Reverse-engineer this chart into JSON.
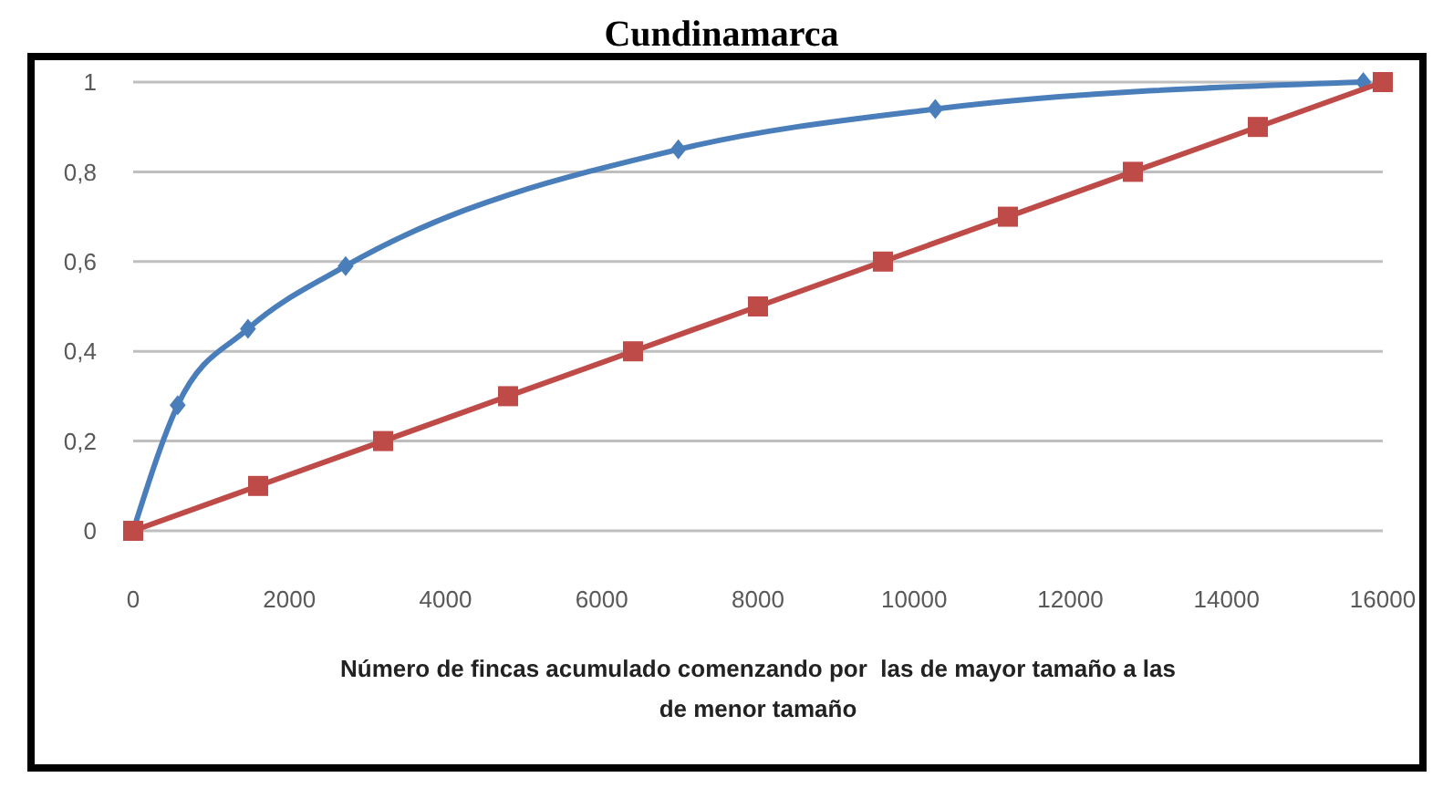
{
  "chart_data": {
    "type": "line",
    "title": "Cundinamarca",
    "xlabel": "Número de fincas acumulado comenzando por  las de mayor tamaño a las de menor tamaño",
    "xlim": [
      0,
      16000
    ],
    "xticks": [
      0,
      2000,
      4000,
      6000,
      8000,
      10000,
      12000,
      14000,
      16000
    ],
    "ylim": [
      0,
      1
    ],
    "yticks": [
      0,
      {
        "value": 0.2,
        "label": "0,2"
      },
      {
        "value": 0.4,
        "label": "0,4"
      },
      {
        "value": 0.6,
        "label": "0,6"
      },
      {
        "value": 0.8,
        "label": "0,8"
      },
      1
    ],
    "grid": "y",
    "series": [
      {
        "color": "#4a7ebb",
        "marker": "diamond",
        "x": [
          0,
          570,
          1470,
          2720,
          6980,
          10270,
          15750
        ],
        "values": [
          0,
          0.28,
          0.45,
          0.59,
          0.85,
          0.94,
          1.0
        ]
      },
      {
        "color": "#be4b48",
        "marker": "square",
        "x": [
          0,
          1600,
          3200,
          4800,
          6400,
          8000,
          9600,
          11200,
          12800,
          14400,
          16000
        ],
        "values": [
          0,
          0.1,
          0.2,
          0.3,
          0.4,
          0.5,
          0.6,
          0.7,
          0.8,
          0.9,
          1.0
        ]
      }
    ]
  }
}
